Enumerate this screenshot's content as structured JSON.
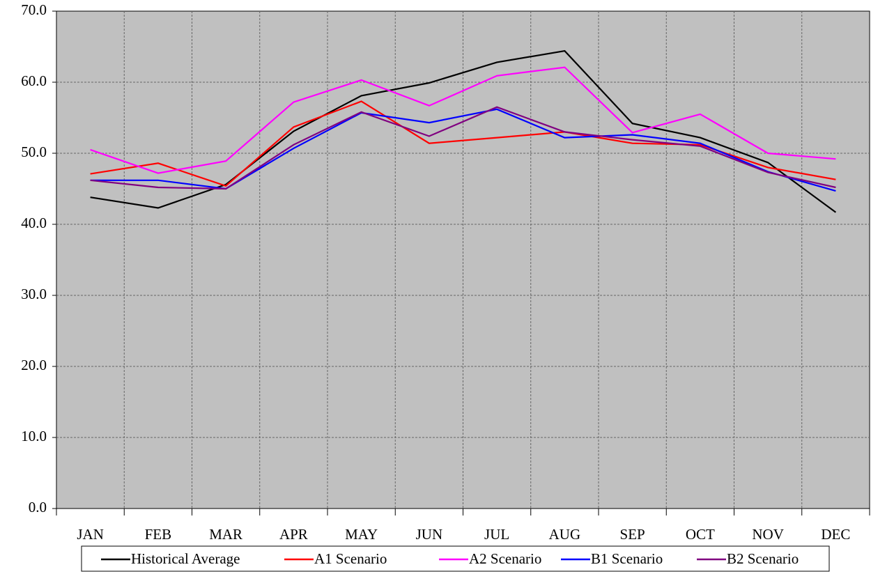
{
  "chart_data": {
    "type": "line",
    "categories": [
      "JAN",
      "FEB",
      "MAR",
      "APR",
      "MAY",
      "JUN",
      "JUL",
      "AUG",
      "SEP",
      "OCT",
      "NOV",
      "DEC"
    ],
    "series": [
      {
        "name": "Historical Average",
        "color": "#000000",
        "values": [
          43.8,
          42.3,
          45.6,
          53.1,
          58.1,
          59.9,
          62.8,
          64.4,
          54.2,
          52.2,
          48.7,
          41.7
        ]
      },
      {
        "name": "A1 Scenario",
        "color": "#ff0000",
        "values": [
          47.1,
          48.6,
          45.4,
          53.7,
          57.3,
          51.4,
          52.2,
          53.0,
          51.4,
          51.2,
          48.0,
          46.3
        ]
      },
      {
        "name": "A2 Scenario",
        "color": "#ff00ff",
        "values": [
          50.5,
          47.2,
          48.9,
          57.2,
          60.3,
          56.7,
          60.9,
          62.1,
          52.9,
          55.5,
          50.0,
          49.2
        ]
      },
      {
        "name": "B1 Scenario",
        "color": "#0000ff",
        "values": [
          46.2,
          46.2,
          45.0,
          50.7,
          55.7,
          54.3,
          56.2,
          52.2,
          52.6,
          51.4,
          47.4,
          44.7
        ]
      },
      {
        "name": "B2 Scenario",
        "color": "#800080",
        "values": [
          46.2,
          45.2,
          45.0,
          51.2,
          55.8,
          52.4,
          56.5,
          53.0,
          51.9,
          51.0,
          47.3,
          45.2
        ]
      }
    ],
    "ylim": [
      0,
      70
    ],
    "yticks": [
      {
        "value": 0,
        "label": "0.0"
      },
      {
        "value": 10,
        "label": "10.0"
      },
      {
        "value": 20,
        "label": "20.0"
      },
      {
        "value": 30,
        "label": "30.0"
      },
      {
        "value": 40,
        "label": "40.0"
      },
      {
        "value": 50,
        "label": "50.0"
      },
      {
        "value": 60,
        "label": "60.0"
      },
      {
        "value": 70,
        "label": "70.0"
      }
    ],
    "grid": true,
    "legend": "bottom"
  }
}
